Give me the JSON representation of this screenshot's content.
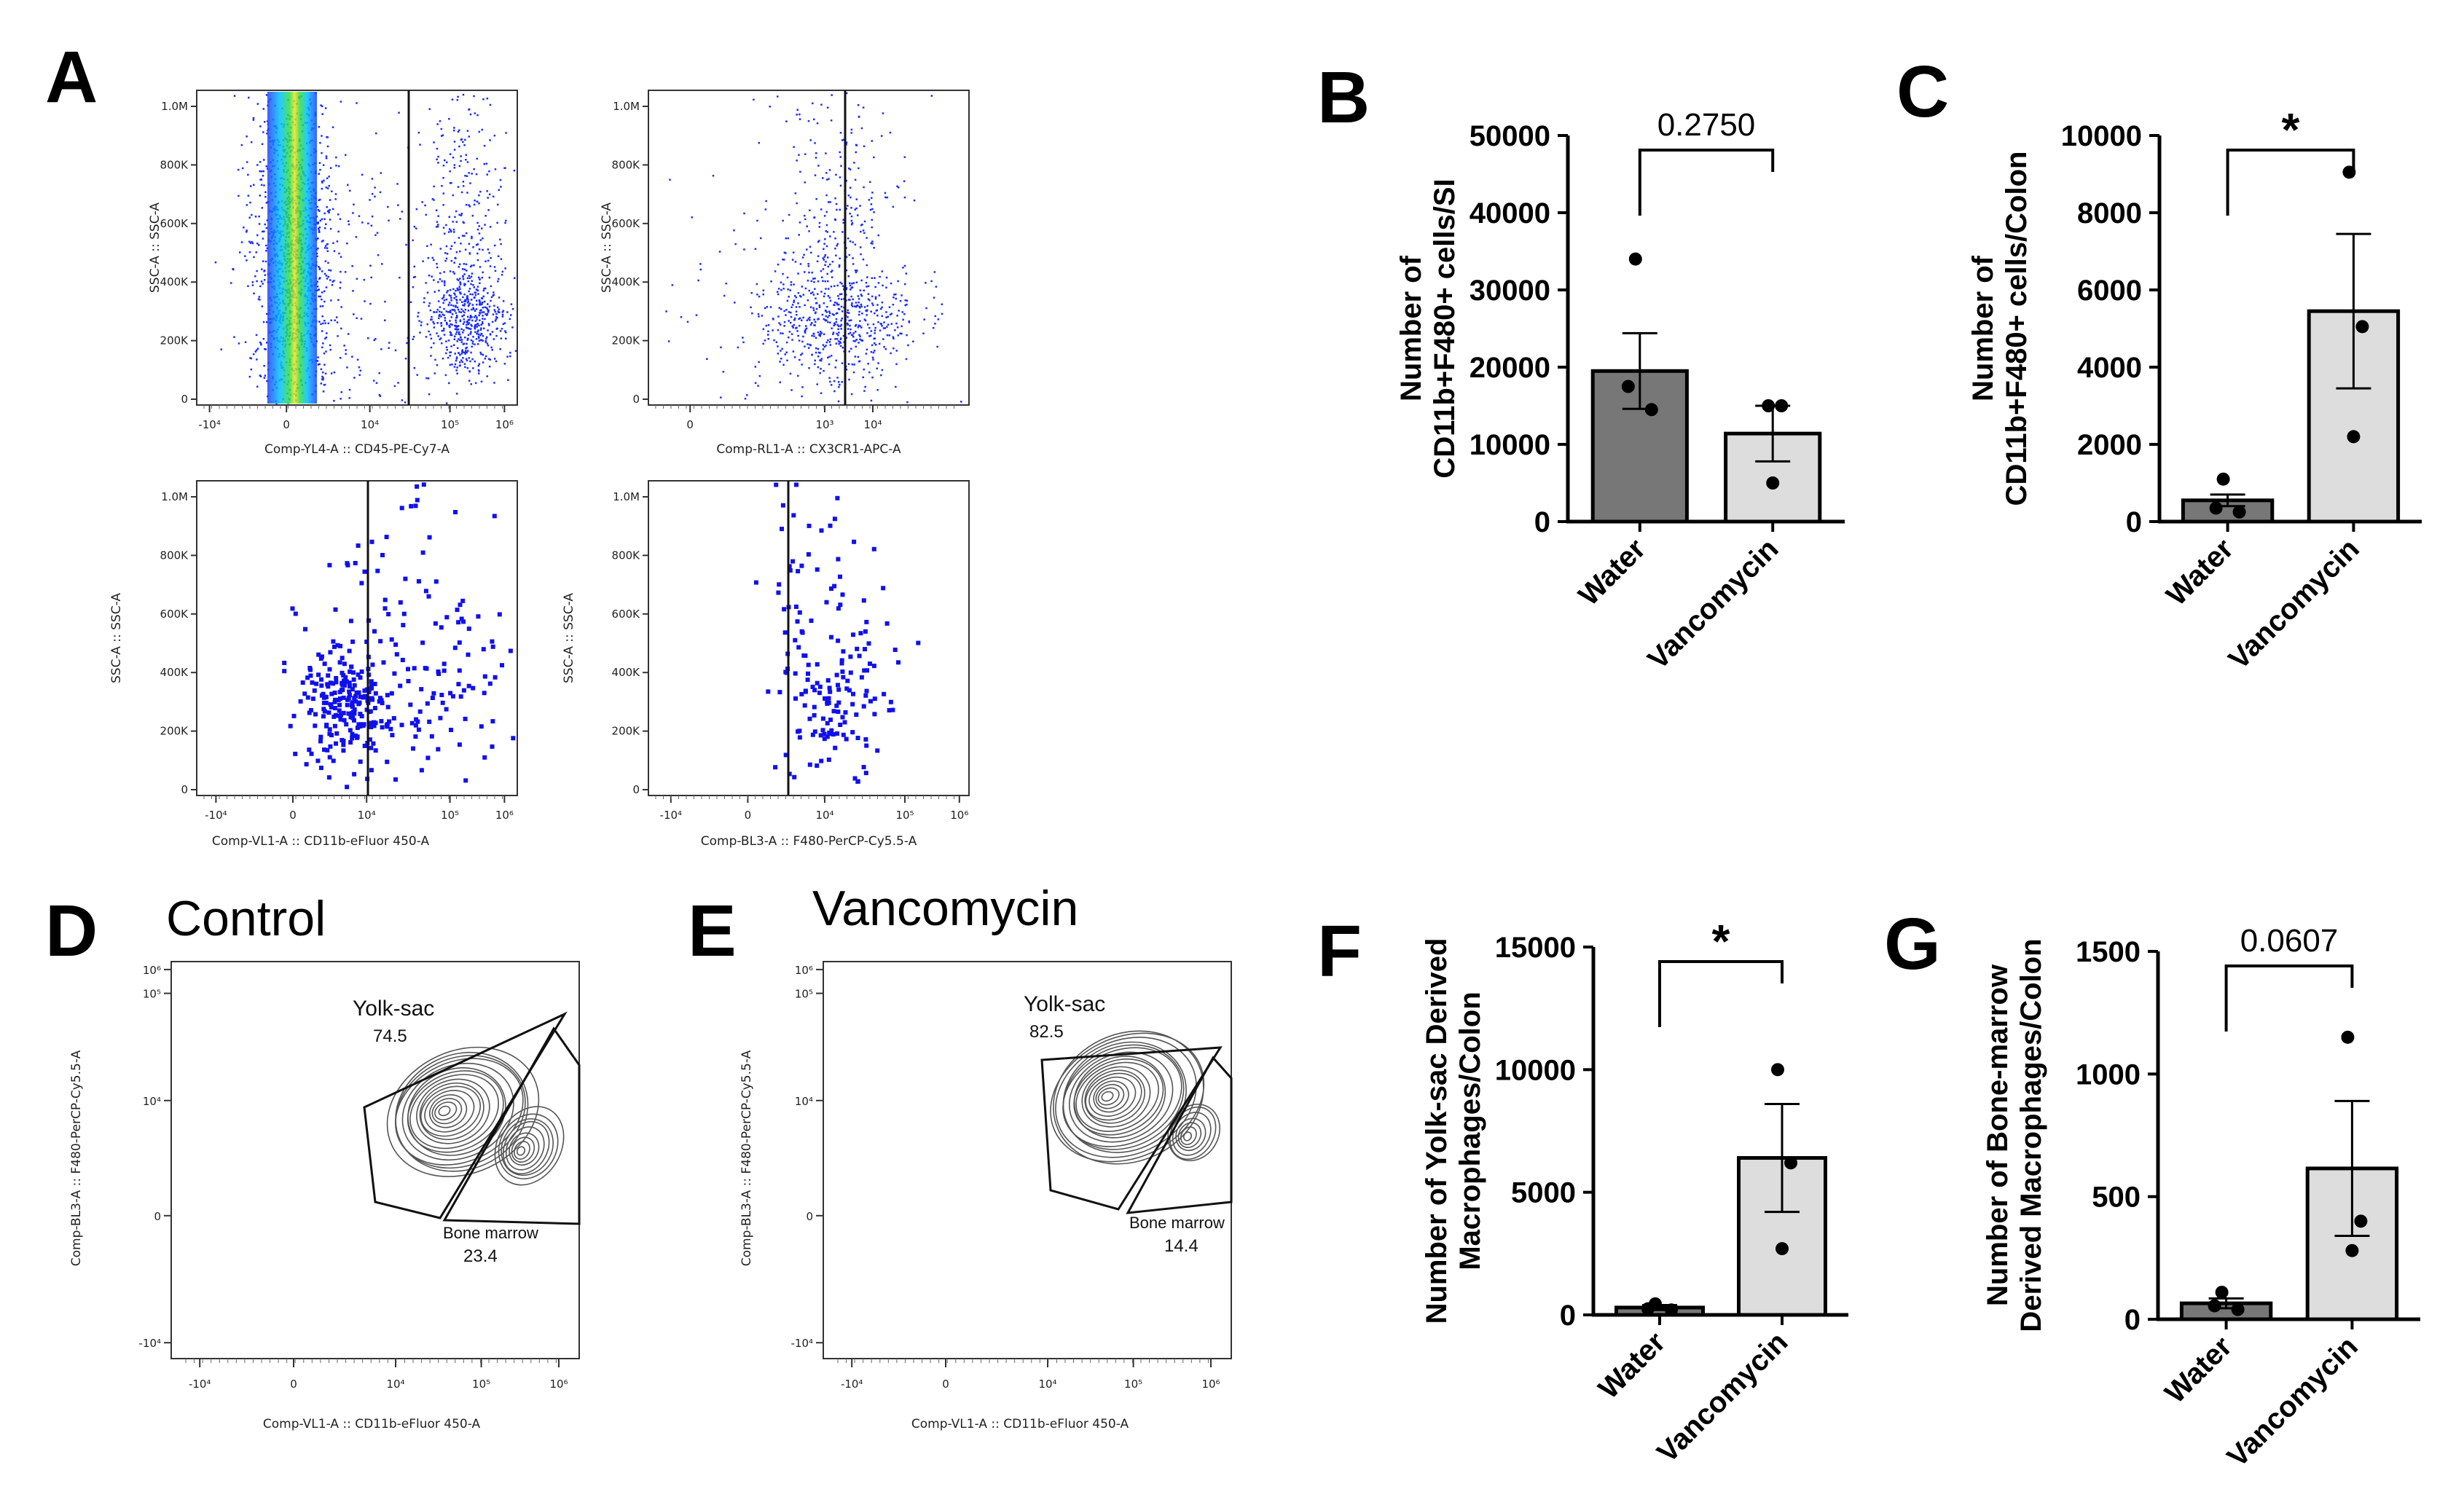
{
  "panel_letters": {
    "A": "A",
    "B": "B",
    "C": "C",
    "D": "D",
    "E": "E",
    "F": "F",
    "G": "G"
  },
  "flow_ticks": {
    "ssc": [
      "0",
      "200K",
      "400K",
      "600K",
      "800K",
      "1.0M"
    ],
    "ssc_label": "SSC-A :: SSC-A",
    "log_a": [
      "-10⁴",
      "0",
      "10⁴",
      "10⁵",
      "10⁶"
    ],
    "log_b": [
      "0",
      "10³",
      "10⁴"
    ],
    "log_c": [
      "-10⁴",
      "0",
      "10⁴",
      "10⁵",
      "10⁶"
    ],
    "contour_y": [
      "-10⁴",
      "0",
      "10⁴",
      "10⁵",
      "10⁶"
    ]
  },
  "flow_panels": [
    {
      "id": "a1",
      "xlabel": "Comp-YL4-A :: CD45-PE-Cy7-A"
    },
    {
      "id": "a2",
      "xlabel": "Comp-RL1-A :: CX3CR1-APC-A"
    },
    {
      "id": "a3",
      "xlabel": "Comp-VL1-A :: CD11b-eFluor   450-A"
    },
    {
      "id": "a4",
      "xlabel": "Comp-BL3-A :: F480-PerCP-Cy5.5-A"
    }
  ],
  "contour_panels": [
    {
      "id": "d",
      "title": "Control",
      "xlabel": "Comp-VL1-A :: CD11b-eFluor   450-A",
      "ylabel": "Comp-BL3-A :: F480-PerCP-Cy5.5-A",
      "gate1": "Yolk-sac",
      "gate1_pct": "74.5",
      "gate2": "Bone marrow",
      "gate2_pct": "23.4"
    },
    {
      "id": "e",
      "title": "Vancomycin",
      "xlabel": "Comp-VL1-A :: CD11b-eFluor   450-A",
      "ylabel": "Comp-BL3-A :: F480-PerCP-Cy5.5-A",
      "gate1": "Yolk-sac",
      "gate1_pct": "82.5",
      "gate2": "Bone marrow",
      "gate2_pct": "14.4"
    }
  ],
  "chart_data": [
    {
      "panel": "B",
      "type": "bar",
      "categories": [
        "Water",
        "Vancomycin"
      ],
      "values": [
        19500,
        11400
      ],
      "sem": [
        4900,
        3600
      ],
      "points": [
        [
          34000,
          17500,
          14500
        ],
        [
          15000,
          15000,
          5000
        ]
      ],
      "ylabel": [
        "Number of",
        "CD11b+F480+ cells/SI"
      ],
      "ylim": [
        0,
        50000
      ],
      "yticks": [
        "0",
        "10000",
        "20000",
        "30000",
        "40000",
        "50000"
      ],
      "significance": "0.2750",
      "bar_colors": [
        "#777777",
        "#dddddd"
      ]
    },
    {
      "panel": "C",
      "type": "bar",
      "categories": [
        "Water",
        "Vancomycin"
      ],
      "values": [
        550,
        5450
      ],
      "sem": [
        150,
        2000
      ],
      "points": [
        [
          1100,
          350,
          250
        ],
        [
          9050,
          5050,
          2200
        ]
      ],
      "ylabel": [
        "Number of",
        "CD11b+F480+ cells/Colon"
      ],
      "ylim": [
        0,
        10000
      ],
      "yticks": [
        "0",
        "2000",
        "4000",
        "6000",
        "8000",
        "10000"
      ],
      "significance": "*",
      "bar_colors": [
        "#777777",
        "#dddddd"
      ]
    },
    {
      "panel": "F",
      "type": "bar",
      "categories": [
        "Water",
        "Vancomycin"
      ],
      "values": [
        300,
        6400
      ],
      "sem": [
        100,
        2200
      ],
      "points": [
        [
          450,
          250,
          200
        ],
        [
          10000,
          6200,
          2700
        ]
      ],
      "ylabel": [
        "Number of Yolk-sac Derived",
        "Macrophages/Colon"
      ],
      "ylim": [
        0,
        15000
      ],
      "yticks": [
        "0",
        "5000",
        "10000",
        "15000"
      ],
      "significance": "*",
      "bar_colors": [
        "#777777",
        "#dddddd"
      ]
    },
    {
      "panel": "G",
      "type": "bar",
      "categories": [
        "Water",
        "Vancomycin"
      ],
      "values": [
        65,
        615
      ],
      "sem": [
        20,
        275
      ],
      "points": [
        [
          110,
          55,
          40
        ],
        [
          1150,
          400,
          280
        ]
      ],
      "ylabel": [
        "Number of Bone-marrow",
        "Derived Macrophages/Colon"
      ],
      "ylim": [
        0,
        1500
      ],
      "yticks": [
        "0",
        "500",
        "1000",
        "1500"
      ],
      "significance": "0.0607",
      "bar_colors": [
        "#777777",
        "#dddddd"
      ]
    }
  ]
}
